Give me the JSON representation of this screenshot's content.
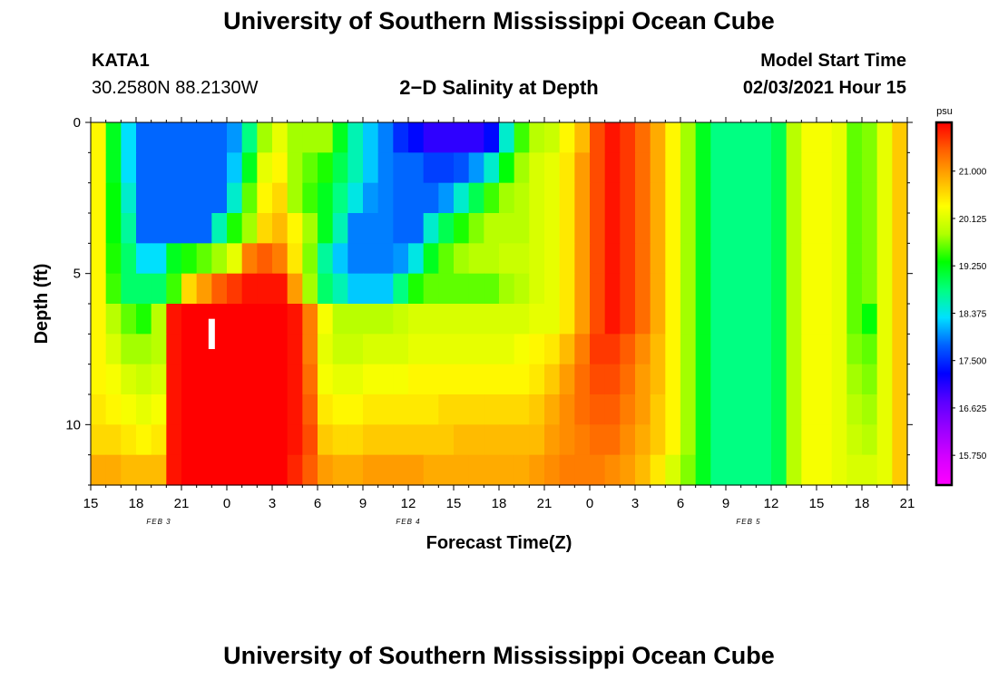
{
  "page": {
    "title_top": "University of Southern Mississippi Ocean Cube",
    "title_bottom": "University of Southern Mississippi Ocean Cube",
    "station_name": "KATA1",
    "station_coords": "30.2580N 88.2130W",
    "plot_title": "2−D Salinity at Depth",
    "model_start_label": "Model Start Time",
    "model_start_value": "02/03/2021 Hour 15"
  },
  "colors": {
    "background": "#ffffff",
    "scale": [
      "#ff00ff",
      "#d400ff",
      "#9a00ff",
      "#5a00ff",
      "#0000ff",
      "#0060ff",
      "#00e0ff",
      "#00ff80",
      "#00ff00",
      "#b0ff00",
      "#ffff00",
      "#ffb000",
      "#ff6000",
      "#ff0000"
    ]
  },
  "chart_data": {
    "type": "heatmap",
    "title": "2−D Salinity at Depth",
    "xlabel": "Forecast Time(Z)",
    "ylabel": "Depth (ft)",
    "colorbar_unit": "psu",
    "colorbar_ticks": [
      "15.750",
      "16.625",
      "17.500",
      "18.375",
      "19.250",
      "20.125",
      "21.000"
    ],
    "colorbar_range": [
      15.2,
      21.9
    ],
    "x_range_hours": [
      0,
      54
    ],
    "y_range_ft": [
      0,
      12
    ],
    "x_ticks": [
      {
        "h": 0,
        "label": "15"
      },
      {
        "h": 3,
        "label": "18"
      },
      {
        "h": 6,
        "label": "21"
      },
      {
        "h": 9,
        "label": "0"
      },
      {
        "h": 12,
        "label": "3"
      },
      {
        "h": 15,
        "label": "6"
      },
      {
        "h": 18,
        "label": "9"
      },
      {
        "h": 21,
        "label": "12"
      },
      {
        "h": 24,
        "label": "15"
      },
      {
        "h": 27,
        "label": "18"
      },
      {
        "h": 30,
        "label": "21"
      },
      {
        "h": 33,
        "label": "0"
      },
      {
        "h": 36,
        "label": "3"
      },
      {
        "h": 39,
        "label": "6"
      },
      {
        "h": 42,
        "label": "9"
      },
      {
        "h": 45,
        "label": "12"
      },
      {
        "h": 48,
        "label": "15"
      },
      {
        "h": 51,
        "label": "18"
      },
      {
        "h": 54,
        "label": "21"
      }
    ],
    "y_ticks": [
      {
        "ft": 0,
        "label": "0"
      },
      {
        "ft": 5,
        "label": "5"
      },
      {
        "ft": 10,
        "label": "10"
      }
    ],
    "date_labels": [
      {
        "h": 4.5,
        "label": "FEB 3"
      },
      {
        "h": 21,
        "label": "FEB 4"
      },
      {
        "h": 43.5,
        "label": "FEB 5"
      }
    ],
    "marker": {
      "h": 8,
      "ft_top": 6.5,
      "ft_bottom": 7.5
    },
    "grid": {
      "columns": 54,
      "column_hours": 1,
      "row_depths_ft": [
        0.5,
        1.5,
        2.5,
        3.5,
        4.5,
        5.5,
        6.5,
        7.5,
        8.5,
        9.5,
        10.5,
        11.5
      ],
      "row_height_ft": 1,
      "values": [
        [
          20.4,
          19.2,
          18.3,
          17.8,
          17.8,
          17.8,
          17.8,
          17.8,
          17.8,
          18.0,
          18.8,
          19.8,
          20.2,
          19.8,
          19.8,
          19.8,
          19.2,
          18.6,
          18.2,
          17.9,
          17.5,
          17.3,
          17.0,
          17.0,
          17.0,
          17.0,
          17.3,
          18.5,
          19.5,
          19.9,
          20.0,
          20.4,
          20.8,
          21.5,
          21.8,
          21.6,
          21.3,
          20.9,
          20.4,
          19.8,
          19.2,
          18.8,
          18.8,
          18.8,
          18.8,
          19.0,
          19.9,
          20.3,
          20.3,
          20.2,
          19.6,
          19.7,
          20.2,
          20.7
        ],
        [
          20.4,
          19.2,
          18.3,
          17.8,
          17.8,
          17.8,
          17.8,
          17.8,
          17.8,
          18.2,
          19.2,
          20.2,
          20.4,
          19.8,
          19.6,
          19.4,
          19.0,
          18.6,
          18.2,
          17.9,
          17.8,
          17.8,
          17.6,
          17.6,
          17.7,
          18.0,
          18.5,
          19.3,
          19.8,
          20.1,
          20.2,
          20.5,
          21.0,
          21.5,
          21.8,
          21.6,
          21.3,
          20.9,
          20.4,
          19.8,
          19.2,
          18.8,
          18.8,
          18.8,
          18.8,
          19.0,
          19.9,
          20.3,
          20.3,
          20.2,
          19.6,
          19.7,
          20.2,
          20.7
        ],
        [
          20.4,
          19.3,
          18.5,
          17.8,
          17.8,
          17.8,
          17.8,
          17.8,
          17.8,
          18.5,
          19.6,
          20.4,
          20.6,
          19.8,
          19.5,
          19.2,
          18.8,
          18.4,
          18.0,
          17.9,
          17.8,
          17.8,
          17.8,
          18.0,
          18.5,
          19.0,
          19.5,
          19.8,
          19.9,
          20.1,
          20.2,
          20.5,
          21.0,
          21.5,
          21.8,
          21.6,
          21.3,
          20.9,
          20.4,
          19.8,
          19.2,
          18.8,
          18.8,
          18.8,
          18.8,
          19.0,
          19.9,
          20.3,
          20.3,
          20.2,
          19.6,
          19.7,
          20.2,
          20.7
        ],
        [
          20.4,
          19.3,
          18.7,
          17.8,
          17.8,
          17.8,
          17.8,
          17.8,
          18.6,
          19.4,
          19.8,
          20.6,
          20.8,
          20.4,
          19.8,
          19.2,
          18.6,
          17.9,
          17.9,
          17.9,
          17.8,
          17.8,
          18.5,
          19.0,
          19.4,
          19.7,
          19.9,
          19.9,
          19.9,
          20.1,
          20.2,
          20.5,
          21.0,
          21.5,
          21.8,
          21.6,
          21.3,
          20.9,
          20.4,
          19.8,
          19.2,
          18.8,
          18.8,
          18.8,
          18.8,
          19.0,
          19.9,
          20.3,
          20.3,
          20.2,
          19.6,
          19.7,
          20.2,
          20.7
        ],
        [
          20.4,
          19.4,
          18.9,
          18.3,
          18.3,
          19.2,
          19.4,
          19.6,
          19.8,
          20.2,
          21.2,
          21.4,
          21.2,
          20.5,
          19.7,
          18.7,
          18.2,
          17.9,
          17.9,
          17.9,
          18.0,
          18.4,
          19.2,
          19.6,
          19.8,
          19.9,
          19.9,
          20.0,
          20.0,
          20.1,
          20.2,
          20.5,
          21.0,
          21.5,
          21.8,
          21.6,
          21.3,
          20.9,
          20.4,
          19.8,
          19.2,
          18.8,
          18.8,
          18.8,
          18.8,
          19.0,
          19.9,
          20.3,
          20.3,
          20.2,
          19.6,
          19.7,
          20.2,
          20.7
        ],
        [
          20.4,
          19.5,
          18.9,
          18.9,
          18.9,
          19.5,
          20.6,
          21.0,
          21.4,
          21.6,
          21.8,
          21.8,
          21.8,
          21.0,
          19.8,
          18.9,
          18.6,
          18.2,
          18.2,
          18.2,
          18.8,
          19.4,
          19.6,
          19.6,
          19.6,
          19.6,
          19.6,
          19.8,
          19.9,
          20.1,
          20.2,
          20.5,
          21.0,
          21.5,
          21.8,
          21.6,
          21.3,
          20.9,
          20.4,
          19.8,
          19.2,
          18.8,
          18.8,
          18.8,
          18.8,
          19.0,
          19.9,
          20.3,
          20.3,
          20.2,
          19.6,
          19.7,
          20.2,
          20.7
        ],
        [
          20.4,
          19.9,
          19.6,
          19.4,
          19.9,
          21.8,
          22.0,
          22.0,
          22.0,
          22.0,
          22.0,
          22.0,
          22.0,
          21.8,
          21.2,
          20.3,
          19.9,
          19.9,
          19.9,
          19.9,
          20.0,
          20.1,
          20.1,
          20.1,
          20.1,
          20.1,
          20.1,
          20.1,
          20.1,
          20.2,
          20.2,
          20.5,
          21.0,
          21.5,
          21.8,
          21.6,
          21.3,
          20.9,
          20.4,
          19.8,
          19.2,
          18.8,
          18.8,
          18.8,
          18.8,
          19.0,
          19.9,
          20.3,
          20.3,
          20.2,
          19.6,
          19.3,
          20.2,
          20.7
        ],
        [
          20.4,
          20.1,
          19.8,
          19.8,
          19.9,
          21.8,
          22.0,
          22.0,
          22.0,
          22.0,
          22.0,
          22.0,
          22.0,
          21.8,
          21.2,
          20.2,
          20.0,
          20.0,
          20.1,
          20.1,
          20.1,
          20.2,
          20.2,
          20.2,
          20.2,
          20.2,
          20.2,
          20.2,
          20.3,
          20.4,
          20.5,
          20.8,
          21.2,
          21.6,
          21.6,
          21.4,
          21.1,
          20.8,
          20.4,
          19.8,
          19.2,
          18.8,
          18.8,
          18.8,
          18.8,
          19.0,
          19.9,
          20.3,
          20.3,
          20.2,
          19.7,
          19.6,
          20.2,
          20.7
        ],
        [
          20.4,
          20.3,
          20.1,
          20.0,
          20.1,
          21.8,
          22.0,
          22.0,
          22.0,
          22.0,
          22.0,
          22.0,
          22.0,
          21.8,
          21.3,
          20.3,
          20.2,
          20.2,
          20.3,
          20.3,
          20.3,
          20.4,
          20.4,
          20.4,
          20.4,
          20.4,
          20.4,
          20.4,
          20.4,
          20.5,
          20.7,
          21.0,
          21.3,
          21.5,
          21.5,
          21.3,
          21.0,
          20.8,
          20.4,
          19.8,
          19.2,
          18.8,
          18.8,
          18.8,
          18.8,
          19.0,
          19.9,
          20.3,
          20.3,
          20.2,
          19.8,
          19.7,
          20.2,
          20.7
        ],
        [
          20.5,
          20.4,
          20.3,
          20.2,
          20.3,
          21.8,
          22.0,
          22.0,
          22.0,
          22.0,
          22.0,
          22.0,
          22.0,
          21.8,
          21.4,
          20.5,
          20.4,
          20.4,
          20.5,
          20.5,
          20.5,
          20.5,
          20.5,
          20.6,
          20.6,
          20.6,
          20.6,
          20.6,
          20.6,
          20.7,
          20.9,
          21.1,
          21.3,
          21.4,
          21.4,
          21.2,
          21.0,
          20.7,
          20.4,
          19.8,
          19.2,
          18.8,
          18.8,
          18.8,
          18.8,
          19.0,
          19.9,
          20.3,
          20.3,
          20.2,
          19.9,
          19.8,
          20.2,
          20.7
        ],
        [
          20.6,
          20.6,
          20.5,
          20.4,
          20.5,
          21.8,
          22.0,
          22.0,
          22.0,
          22.0,
          22.0,
          22.0,
          22.0,
          21.8,
          21.5,
          20.7,
          20.6,
          20.6,
          20.7,
          20.7,
          20.7,
          20.7,
          20.7,
          20.7,
          20.8,
          20.8,
          20.8,
          20.8,
          20.8,
          20.8,
          21.0,
          21.1,
          21.2,
          21.3,
          21.3,
          21.1,
          20.9,
          20.7,
          20.4,
          19.8,
          19.2,
          18.8,
          18.8,
          18.8,
          18.8,
          19.0,
          19.9,
          20.3,
          20.3,
          20.2,
          20.0,
          19.9,
          20.2,
          20.7
        ],
        [
          20.9,
          20.9,
          20.8,
          20.8,
          20.8,
          21.8,
          22.0,
          22.0,
          22.0,
          22.0,
          22.0,
          22.0,
          22.0,
          21.7,
          21.4,
          21.0,
          20.9,
          20.9,
          21.0,
          21.0,
          21.0,
          21.0,
          20.9,
          20.9,
          20.9,
          20.9,
          20.9,
          20.9,
          20.9,
          21.0,
          21.1,
          21.2,
          21.2,
          21.2,
          21.1,
          21.0,
          20.8,
          20.5,
          20.1,
          19.7,
          19.2,
          18.8,
          18.8,
          18.8,
          18.8,
          19.0,
          19.9,
          20.3,
          20.3,
          20.2,
          20.1,
          20.1,
          20.2,
          20.7
        ]
      ]
    }
  }
}
